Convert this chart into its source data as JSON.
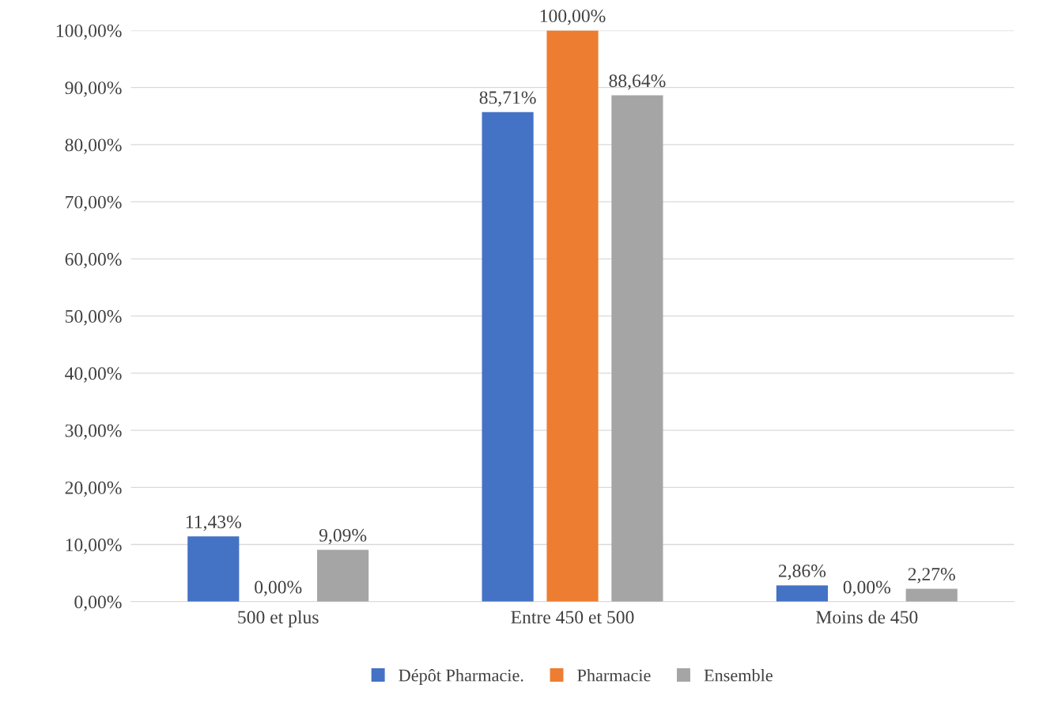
{
  "chart_data": {
    "type": "bar",
    "categories": [
      "500 et plus",
      "Entre 450 et 500",
      "Moins de 450"
    ],
    "series": [
      {
        "name": "Dépôt Pharmacie.",
        "color": "#4472c4",
        "values": [
          11.43,
          85.71,
          2.86
        ],
        "value_labels": [
          "11,43%",
          "85,71%",
          "2,86%"
        ]
      },
      {
        "name": "Pharmacie",
        "color": "#ed7d31",
        "values": [
          0,
          100,
          0
        ],
        "value_labels": [
          "0,00%",
          "100,00%",
          "0,00%"
        ]
      },
      {
        "name": "Ensemble",
        "color": "#a5a5a5",
        "values": [
          9.09,
          88.64,
          2.27
        ],
        "value_labels": [
          "9,09%",
          "88,64%",
          "2,27%"
        ]
      }
    ],
    "ylim": [
      0,
      100
    ],
    "yticks": [
      {
        "value": 0,
        "label": "0,00%"
      },
      {
        "value": 10,
        "label": "10,00%"
      },
      {
        "value": 20,
        "label": "20,00%"
      },
      {
        "value": 30,
        "label": "30,00%"
      },
      {
        "value": 40,
        "label": "40,00%"
      },
      {
        "value": 50,
        "label": "50,00%"
      },
      {
        "value": 60,
        "label": "60,00%"
      },
      {
        "value": 70,
        "label": "70,00%"
      },
      {
        "value": 80,
        "label": "80,00%"
      },
      {
        "value": 90,
        "label": "90,00%"
      },
      {
        "value": 100,
        "label": "100,00%"
      }
    ],
    "grid": "y",
    "legend": "bottom"
  }
}
